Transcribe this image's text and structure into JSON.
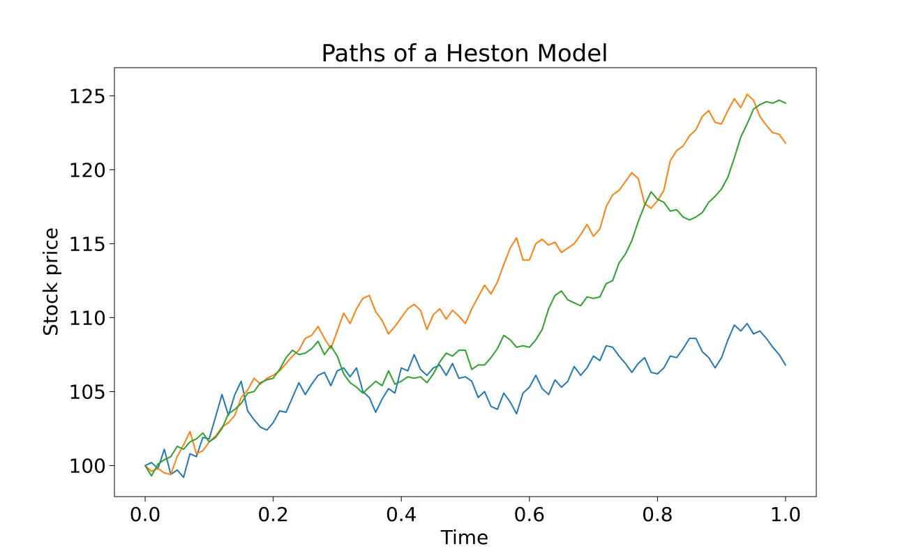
{
  "chart_data": {
    "type": "line",
    "title": "Paths of a Heston Model",
    "xlabel": "Time",
    "ylabel": "Stock price",
    "xlim": [
      -0.048,
      1.048
    ],
    "ylim": [
      97.9,
      126.9
    ],
    "xticks": [
      0.0,
      0.2,
      0.4,
      0.6,
      0.8,
      1.0
    ],
    "xtick_labels": [
      "0.0",
      "0.2",
      "0.4",
      "0.6",
      "0.8",
      "1.0"
    ],
    "yticks": [
      100,
      105,
      110,
      115,
      120,
      125
    ],
    "ytick_labels": [
      "100",
      "105",
      "110",
      "115",
      "120",
      "125"
    ],
    "grid": false,
    "legend": false,
    "series": [
      {
        "color": "#1f77b4",
        "x": [
          0.0,
          0.01,
          0.02,
          0.03,
          0.04,
          0.05,
          0.06,
          0.07,
          0.08,
          0.09,
          0.1,
          0.11,
          0.12,
          0.13,
          0.14,
          0.15,
          0.16,
          0.17,
          0.18,
          0.19,
          0.2,
          0.21,
          0.22,
          0.23,
          0.24,
          0.25,
          0.26,
          0.27,
          0.28,
          0.29,
          0.3,
          0.31,
          0.32,
          0.33,
          0.34,
          0.35,
          0.36,
          0.37,
          0.38,
          0.39,
          0.4,
          0.41,
          0.42,
          0.43,
          0.44,
          0.45,
          0.46,
          0.47,
          0.48,
          0.49,
          0.5,
          0.51,
          0.52,
          0.53,
          0.54,
          0.55,
          0.56,
          0.57,
          0.58,
          0.59,
          0.6,
          0.61,
          0.62,
          0.63,
          0.64,
          0.65,
          0.66,
          0.67,
          0.68,
          0.69,
          0.7,
          0.71,
          0.72,
          0.73,
          0.74,
          0.75,
          0.76,
          0.77,
          0.78,
          0.79,
          0.8,
          0.81,
          0.82,
          0.83,
          0.84,
          0.85,
          0.86,
          0.87,
          0.88,
          0.89,
          0.9,
          0.91,
          0.92,
          0.93,
          0.94,
          0.95,
          0.96,
          0.97,
          0.98,
          0.99,
          1.0
        ],
        "y": [
          100.0,
          100.2,
          99.8,
          101.1,
          99.4,
          99.7,
          99.2,
          100.8,
          100.6,
          101.9,
          101.8,
          103.3,
          104.8,
          103.4,
          104.8,
          105.7,
          103.7,
          103.1,
          102.6,
          102.4,
          102.9,
          103.7,
          103.6,
          104.6,
          105.6,
          104.8,
          105.5,
          106.1,
          106.3,
          105.4,
          106.4,
          106.6,
          106.0,
          106.6,
          105.0,
          104.6,
          103.6,
          104.5,
          105.2,
          104.9,
          106.6,
          106.4,
          107.5,
          106.5,
          106.1,
          106.6,
          106.8,
          106.1,
          106.9,
          105.9,
          106.0,
          105.7,
          104.6,
          105.0,
          104.0,
          103.8,
          104.9,
          104.3,
          103.5,
          104.9,
          105.3,
          106.1,
          105.2,
          104.8,
          105.8,
          105.3,
          105.7,
          106.7,
          106.1,
          106.6,
          107.4,
          107.1,
          108.1,
          108.0,
          107.4,
          106.9,
          106.3,
          106.9,
          107.3,
          106.3,
          106.2,
          106.6,
          107.4,
          107.3,
          107.9,
          108.6,
          108.6,
          107.7,
          107.3,
          106.6,
          107.3,
          108.5,
          109.5,
          109.1,
          109.6,
          108.9,
          109.1,
          108.6,
          108.0,
          107.5,
          106.8
        ]
      },
      {
        "color": "#ff7f0e",
        "x": [
          0.0,
          0.01,
          0.02,
          0.03,
          0.04,
          0.05,
          0.06,
          0.07,
          0.08,
          0.09,
          0.1,
          0.11,
          0.12,
          0.13,
          0.14,
          0.15,
          0.16,
          0.17,
          0.18,
          0.19,
          0.2,
          0.21,
          0.22,
          0.23,
          0.24,
          0.25,
          0.26,
          0.27,
          0.28,
          0.29,
          0.3,
          0.31,
          0.32,
          0.33,
          0.34,
          0.35,
          0.36,
          0.37,
          0.38,
          0.39,
          0.4,
          0.41,
          0.42,
          0.43,
          0.44,
          0.45,
          0.46,
          0.47,
          0.48,
          0.49,
          0.5,
          0.51,
          0.52,
          0.53,
          0.54,
          0.55,
          0.56,
          0.57,
          0.58,
          0.59,
          0.6,
          0.61,
          0.62,
          0.63,
          0.64,
          0.65,
          0.66,
          0.67,
          0.68,
          0.69,
          0.7,
          0.71,
          0.72,
          0.73,
          0.74,
          0.75,
          0.76,
          0.77,
          0.78,
          0.79,
          0.8,
          0.81,
          0.82,
          0.83,
          0.84,
          0.85,
          0.86,
          0.87,
          0.88,
          0.89,
          0.9,
          0.91,
          0.92,
          0.93,
          0.94,
          0.95,
          0.96,
          0.97,
          0.98,
          0.99,
          1.0
        ],
        "y": [
          100.0,
          99.6,
          99.8,
          99.5,
          99.4,
          100.6,
          101.4,
          102.3,
          100.8,
          101.0,
          101.6,
          102.0,
          102.6,
          102.9,
          103.4,
          104.6,
          105.1,
          105.9,
          105.5,
          105.9,
          106.1,
          106.4,
          106.9,
          107.4,
          107.8,
          108.6,
          108.8,
          109.4,
          108.6,
          107.9,
          109.1,
          110.3,
          109.6,
          110.6,
          111.3,
          111.5,
          110.4,
          109.8,
          108.9,
          109.4,
          110.0,
          110.6,
          110.9,
          110.5,
          109.2,
          110.2,
          110.6,
          109.9,
          110.5,
          110.1,
          109.6,
          110.6,
          111.4,
          112.2,
          111.6,
          112.4,
          113.6,
          114.7,
          115.4,
          113.9,
          113.9,
          115.0,
          115.3,
          114.9,
          115.1,
          114.4,
          114.7,
          115.0,
          115.6,
          116.3,
          115.5,
          116.0,
          117.5,
          118.3,
          118.6,
          119.2,
          119.8,
          119.4,
          117.7,
          117.4,
          117.9,
          118.6,
          120.6,
          121.3,
          121.6,
          122.3,
          122.7,
          123.6,
          124.0,
          123.2,
          123.1,
          124.0,
          124.8,
          124.2,
          125.1,
          124.7,
          123.6,
          123.0,
          122.5,
          122.4,
          121.8
        ]
      },
      {
        "color": "#2ca02c",
        "x": [
          0.0,
          0.01,
          0.02,
          0.03,
          0.04,
          0.05,
          0.06,
          0.07,
          0.08,
          0.09,
          0.1,
          0.11,
          0.12,
          0.13,
          0.14,
          0.15,
          0.16,
          0.17,
          0.18,
          0.19,
          0.2,
          0.21,
          0.22,
          0.23,
          0.24,
          0.25,
          0.26,
          0.27,
          0.28,
          0.29,
          0.3,
          0.31,
          0.32,
          0.33,
          0.34,
          0.35,
          0.36,
          0.37,
          0.38,
          0.39,
          0.4,
          0.41,
          0.42,
          0.43,
          0.44,
          0.45,
          0.46,
          0.47,
          0.48,
          0.49,
          0.5,
          0.51,
          0.52,
          0.53,
          0.54,
          0.55,
          0.56,
          0.57,
          0.58,
          0.59,
          0.6,
          0.61,
          0.62,
          0.63,
          0.64,
          0.65,
          0.66,
          0.67,
          0.68,
          0.69,
          0.7,
          0.71,
          0.72,
          0.73,
          0.74,
          0.75,
          0.76,
          0.77,
          0.78,
          0.79,
          0.8,
          0.81,
          0.82,
          0.83,
          0.84,
          0.85,
          0.86,
          0.87,
          0.88,
          0.89,
          0.9,
          0.91,
          0.92,
          0.93,
          0.94,
          0.95,
          0.96,
          0.97,
          0.98,
          0.99,
          1.0
        ],
        "y": [
          100.0,
          99.3,
          100.1,
          100.4,
          100.6,
          101.3,
          101.1,
          101.6,
          101.8,
          102.2,
          101.6,
          101.9,
          102.5,
          103.5,
          103.8,
          104.2,
          104.9,
          105.0,
          105.6,
          105.8,
          105.9,
          106.5,
          107.3,
          107.8,
          107.5,
          107.6,
          107.9,
          108.4,
          107.5,
          108.1,
          107.4,
          106.2,
          105.6,
          105.3,
          104.9,
          105.3,
          105.7,
          105.4,
          106.4,
          105.5,
          105.7,
          106.0,
          105.9,
          106.0,
          105.6,
          106.2,
          107.0,
          107.6,
          107.4,
          107.8,
          107.8,
          106.5,
          106.8,
          106.8,
          107.3,
          107.9,
          108.8,
          108.5,
          108.0,
          108.1,
          108.0,
          108.5,
          109.2,
          110.6,
          111.5,
          111.8,
          111.2,
          111.0,
          110.8,
          111.4,
          111.3,
          111.4,
          112.3,
          112.5,
          113.7,
          114.3,
          115.2,
          116.5,
          117.6,
          118.5,
          118.0,
          117.8,
          117.2,
          117.3,
          116.8,
          116.6,
          116.8,
          117.1,
          117.8,
          118.2,
          118.7,
          119.5,
          120.8,
          122.2,
          123.1,
          124.1,
          124.4,
          124.6,
          124.5,
          124.7,
          124.5
        ]
      }
    ]
  }
}
